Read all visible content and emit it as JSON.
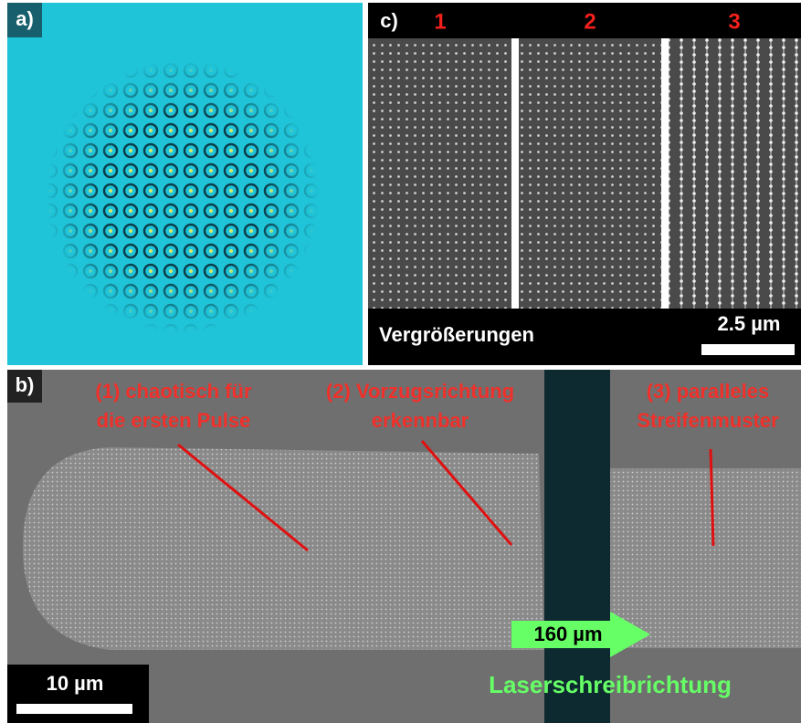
{
  "panel_a": {
    "label": "a)"
  },
  "panel_c": {
    "label": "c)",
    "columns": [
      "1",
      "2",
      "3"
    ],
    "caption": "Vergrößerungen",
    "scale_bar": "2.5 µm"
  },
  "panel_b": {
    "label": "b)",
    "annotations": [
      {
        "lines": [
          "(1) chaotisch für",
          "die ersten Pulse"
        ]
      },
      {
        "lines": [
          "(2) Vorzugsrichtung",
          "erkennbar"
        ]
      },
      {
        "lines": [
          "(3) paralleles",
          "Streifenmuster"
        ]
      }
    ],
    "arrow_label": "160 µm",
    "direction_label": "Laserschreibrichtung",
    "scale_bar": "10 µm"
  }
}
